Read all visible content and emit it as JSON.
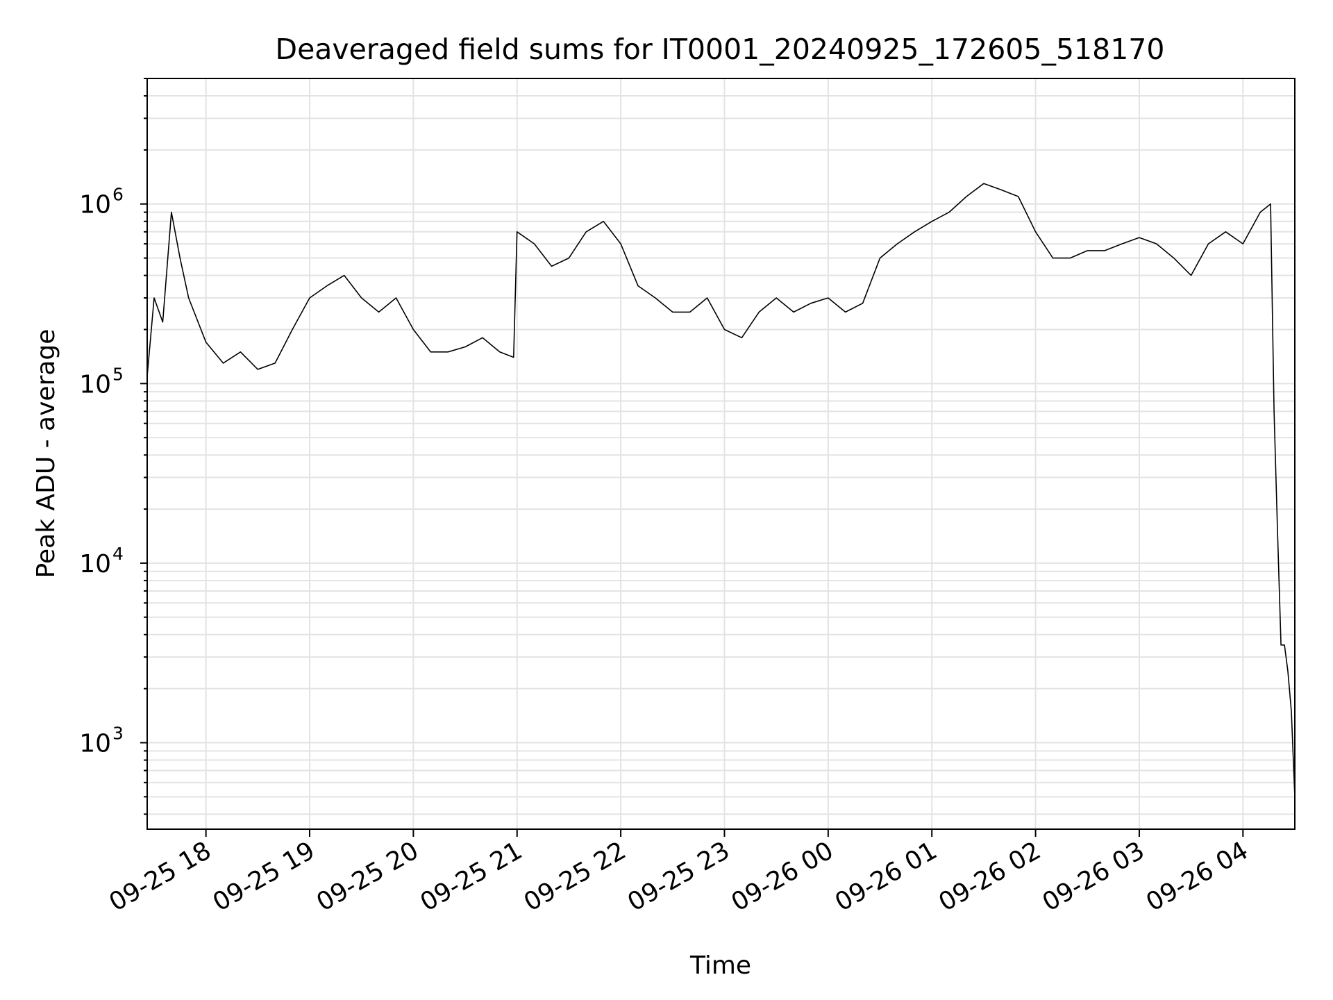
{
  "chart_data": {
    "type": "line",
    "title": "Deaveraged field sums for IT0001_20240925_172605_518170",
    "xlabel": "Time",
    "ylabel": "Peak ADU - average",
    "yscale": "log",
    "ylim": [
      330,
      5000000
    ],
    "xlim": [
      "2024-09-25 17:26",
      "2024-09-26 04:30"
    ],
    "grid": true,
    "line_color": "#000000",
    "grid_color": "#e3e3e3",
    "x_ticks": [
      {
        "value": "2024-09-25 18:00",
        "label": "09-25 18"
      },
      {
        "value": "2024-09-25 19:00",
        "label": "09-25 19"
      },
      {
        "value": "2024-09-25 20:00",
        "label": "09-25 20"
      },
      {
        "value": "2024-09-25 21:00",
        "label": "09-25 21"
      },
      {
        "value": "2024-09-25 22:00",
        "label": "09-25 22"
      },
      {
        "value": "2024-09-25 23:00",
        "label": "09-25 23"
      },
      {
        "value": "2024-09-26 00:00",
        "label": "09-26 00"
      },
      {
        "value": "2024-09-26 01:00",
        "label": "09-26 01"
      },
      {
        "value": "2024-09-26 02:00",
        "label": "09-26 02"
      },
      {
        "value": "2024-09-26 03:00",
        "label": "09-26 03"
      },
      {
        "value": "2024-09-26 04:00",
        "label": "09-26 04"
      }
    ],
    "y_ticks": [
      {
        "value": 1000,
        "base": "10",
        "exp": "3"
      },
      {
        "value": 10000,
        "base": "10",
        "exp": "4"
      },
      {
        "value": 100000,
        "base": "10",
        "exp": "5"
      },
      {
        "value": 1000000,
        "base": "10",
        "exp": "6"
      }
    ],
    "series": [
      {
        "x": [
          "2024-09-25 17:26",
          "2024-09-25 17:30",
          "2024-09-25 17:35",
          "2024-09-25 17:40",
          "2024-09-25 17:45",
          "2024-09-25 17:50",
          "2024-09-25 18:00",
          "2024-09-25 18:10",
          "2024-09-25 18:20",
          "2024-09-25 18:30",
          "2024-09-25 18:40",
          "2024-09-25 18:50",
          "2024-09-25 19:00",
          "2024-09-25 19:10",
          "2024-09-25 19:20",
          "2024-09-25 19:30",
          "2024-09-25 19:40",
          "2024-09-25 19:50",
          "2024-09-25 20:00",
          "2024-09-25 20:10",
          "2024-09-25 20:20",
          "2024-09-25 20:30",
          "2024-09-25 20:40",
          "2024-09-25 20:50",
          "2024-09-25 20:58",
          "2024-09-25 21:00",
          "2024-09-25 21:10",
          "2024-09-25 21:20",
          "2024-09-25 21:30",
          "2024-09-25 21:40",
          "2024-09-25 21:50",
          "2024-09-25 22:00",
          "2024-09-25 22:10",
          "2024-09-25 22:20",
          "2024-09-25 22:30",
          "2024-09-25 22:40",
          "2024-09-25 22:50",
          "2024-09-25 23:00",
          "2024-09-25 23:10",
          "2024-09-25 23:20",
          "2024-09-25 23:30",
          "2024-09-25 23:40",
          "2024-09-25 23:50",
          "2024-09-26 00:00",
          "2024-09-26 00:10",
          "2024-09-26 00:20",
          "2024-09-26 00:30",
          "2024-09-26 00:40",
          "2024-09-26 00:50",
          "2024-09-26 01:00",
          "2024-09-26 01:10",
          "2024-09-26 01:20",
          "2024-09-26 01:30",
          "2024-09-26 01:40",
          "2024-09-26 01:50",
          "2024-09-26 02:00",
          "2024-09-26 02:10",
          "2024-09-26 02:20",
          "2024-09-26 02:30",
          "2024-09-26 02:40",
          "2024-09-26 02:50",
          "2024-09-26 03:00",
          "2024-09-26 03:10",
          "2024-09-26 03:20",
          "2024-09-26 03:30",
          "2024-09-26 03:40",
          "2024-09-26 03:50",
          "2024-09-26 04:00",
          "2024-09-26 04:10",
          "2024-09-26 04:16",
          "2024-09-26 04:18",
          "2024-09-26 04:20",
          "2024-09-26 04:22",
          "2024-09-26 04:24",
          "2024-09-26 04:26",
          "2024-09-26 04:28",
          "2024-09-26 04:30"
        ],
        "y": [
          110000,
          300000,
          220000,
          900000,
          500000,
          300000,
          170000,
          130000,
          150000,
          120000,
          130000,
          200000,
          300000,
          350000,
          400000,
          300000,
          250000,
          300000,
          200000,
          150000,
          150000,
          160000,
          180000,
          150000,
          140000,
          700000,
          600000,
          450000,
          500000,
          700000,
          800000,
          600000,
          350000,
          300000,
          250000,
          250000,
          300000,
          200000,
          180000,
          250000,
          300000,
          250000,
          280000,
          300000,
          250000,
          280000,
          500000,
          600000,
          700000,
          800000,
          900000,
          1100000,
          1300000,
          1200000,
          1100000,
          700000,
          500000,
          500000,
          550000,
          550000,
          600000,
          650000,
          600000,
          500000,
          400000,
          600000,
          700000,
          600000,
          900000,
          1000000,
          70000,
          15000,
          3500,
          3500,
          2500,
          1500,
          500
        ]
      }
    ]
  }
}
